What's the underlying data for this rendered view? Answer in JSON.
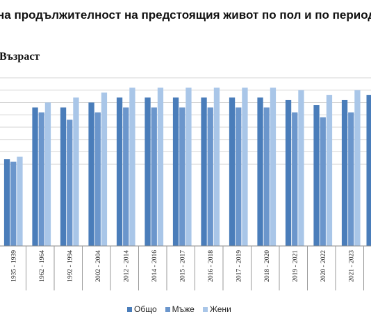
{
  "chart_data": {
    "type": "bar",
    "title": "на продължителност на предстоящия живот по пол и по период",
    "ylabel": "Възраст",
    "xlabel": "",
    "grid": true,
    "legend_position": "bottom",
    "categories": [
      "1935 - 1939",
      "1962 - 1964",
      "1992 - 1994",
      "2002 - 2004",
      "2012 - 2014",
      "2014 - 2016",
      "2015 - 2017",
      "2016 - 2018",
      "2017 - 2019",
      "2018 - 2020",
      "2019 - 2021",
      "2020 - 2022",
      "2021 - 2023"
    ],
    "ylim": [
      0,
      100
    ],
    "series": [
      {
        "name": "Общо",
        "color": "#4a7dba",
        "values": [
          67,
          88,
          88,
          90,
          92,
          92,
          92,
          92,
          92,
          92,
          91,
          89,
          91
        ]
      },
      {
        "name": "Мъже",
        "color": "#6b96cc",
        "values": [
          66,
          86,
          83,
          86,
          88,
          88,
          88,
          88,
          88,
          88,
          86,
          84,
          86
        ]
      },
      {
        "name": "Жени",
        "color": "#a9c6e8",
        "values": [
          68,
          90,
          92,
          94,
          96,
          96,
          96,
          96,
          96,
          96,
          95,
          93,
          95
        ]
      }
    ],
    "partial_value": 93
  }
}
